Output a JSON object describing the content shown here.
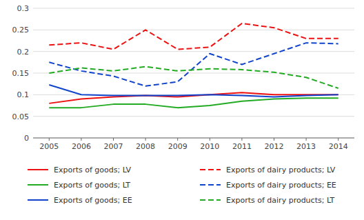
{
  "chart_data": {
    "type": "line",
    "x": [
      2005,
      2006,
      2007,
      2008,
      2009,
      2010,
      2011,
      2012,
      2013,
      2014
    ],
    "xlim": [
      2004.5,
      2014.5
    ],
    "xticks": [
      2005,
      2006,
      2007,
      2008,
      2009,
      2010,
      2011,
      2012,
      2013,
      2014
    ],
    "ylim": [
      0,
      0.3
    ],
    "yticks": [
      0,
      0.05,
      0.1,
      0.15,
      0.2,
      0.25,
      0.3
    ],
    "grid": true,
    "legend": "bottom",
    "series": [
      {
        "name": "Exports of goods; LV",
        "color": "#EE1111",
        "line_style": "solid",
        "values": [
          0.08,
          0.09,
          0.095,
          0.098,
          0.095,
          0.1,
          0.105,
          0.1,
          0.1,
          0.1
        ]
      },
      {
        "name": "Exports of goods; LT",
        "color": "#22AA22",
        "line_style": "solid",
        "values": [
          0.07,
          0.07,
          0.078,
          0.078,
          0.07,
          0.075,
          0.085,
          0.09,
          0.092,
          0.092
        ]
      },
      {
        "name": "Exports of goods; EE",
        "color": "#1144CC",
        "line_style": "solid",
        "values": [
          0.123,
          0.1,
          0.098,
          0.098,
          0.098,
          0.1,
          0.098,
          0.095,
          0.098,
          0.1
        ]
      },
      {
        "name": "Exports of dairy products; LV",
        "color": "#EE1111",
        "line_style": "dashed",
        "values": [
          0.215,
          0.22,
          0.205,
          0.25,
          0.205,
          0.21,
          0.265,
          0.255,
          0.23,
          0.23
        ]
      },
      {
        "name": "Exports of dairy products; EE",
        "color": "#1144CC",
        "line_style": "dashed",
        "values": [
          0.175,
          0.155,
          0.143,
          0.12,
          0.13,
          0.195,
          0.17,
          0.195,
          0.22,
          0.218
        ]
      },
      {
        "name": "Exports of dairy products; LT",
        "color": "#22AA22",
        "line_style": "dashed",
        "values": [
          0.15,
          0.162,
          0.155,
          0.165,
          0.155,
          0.16,
          0.158,
          0.152,
          0.14,
          0.115
        ]
      }
    ]
  }
}
